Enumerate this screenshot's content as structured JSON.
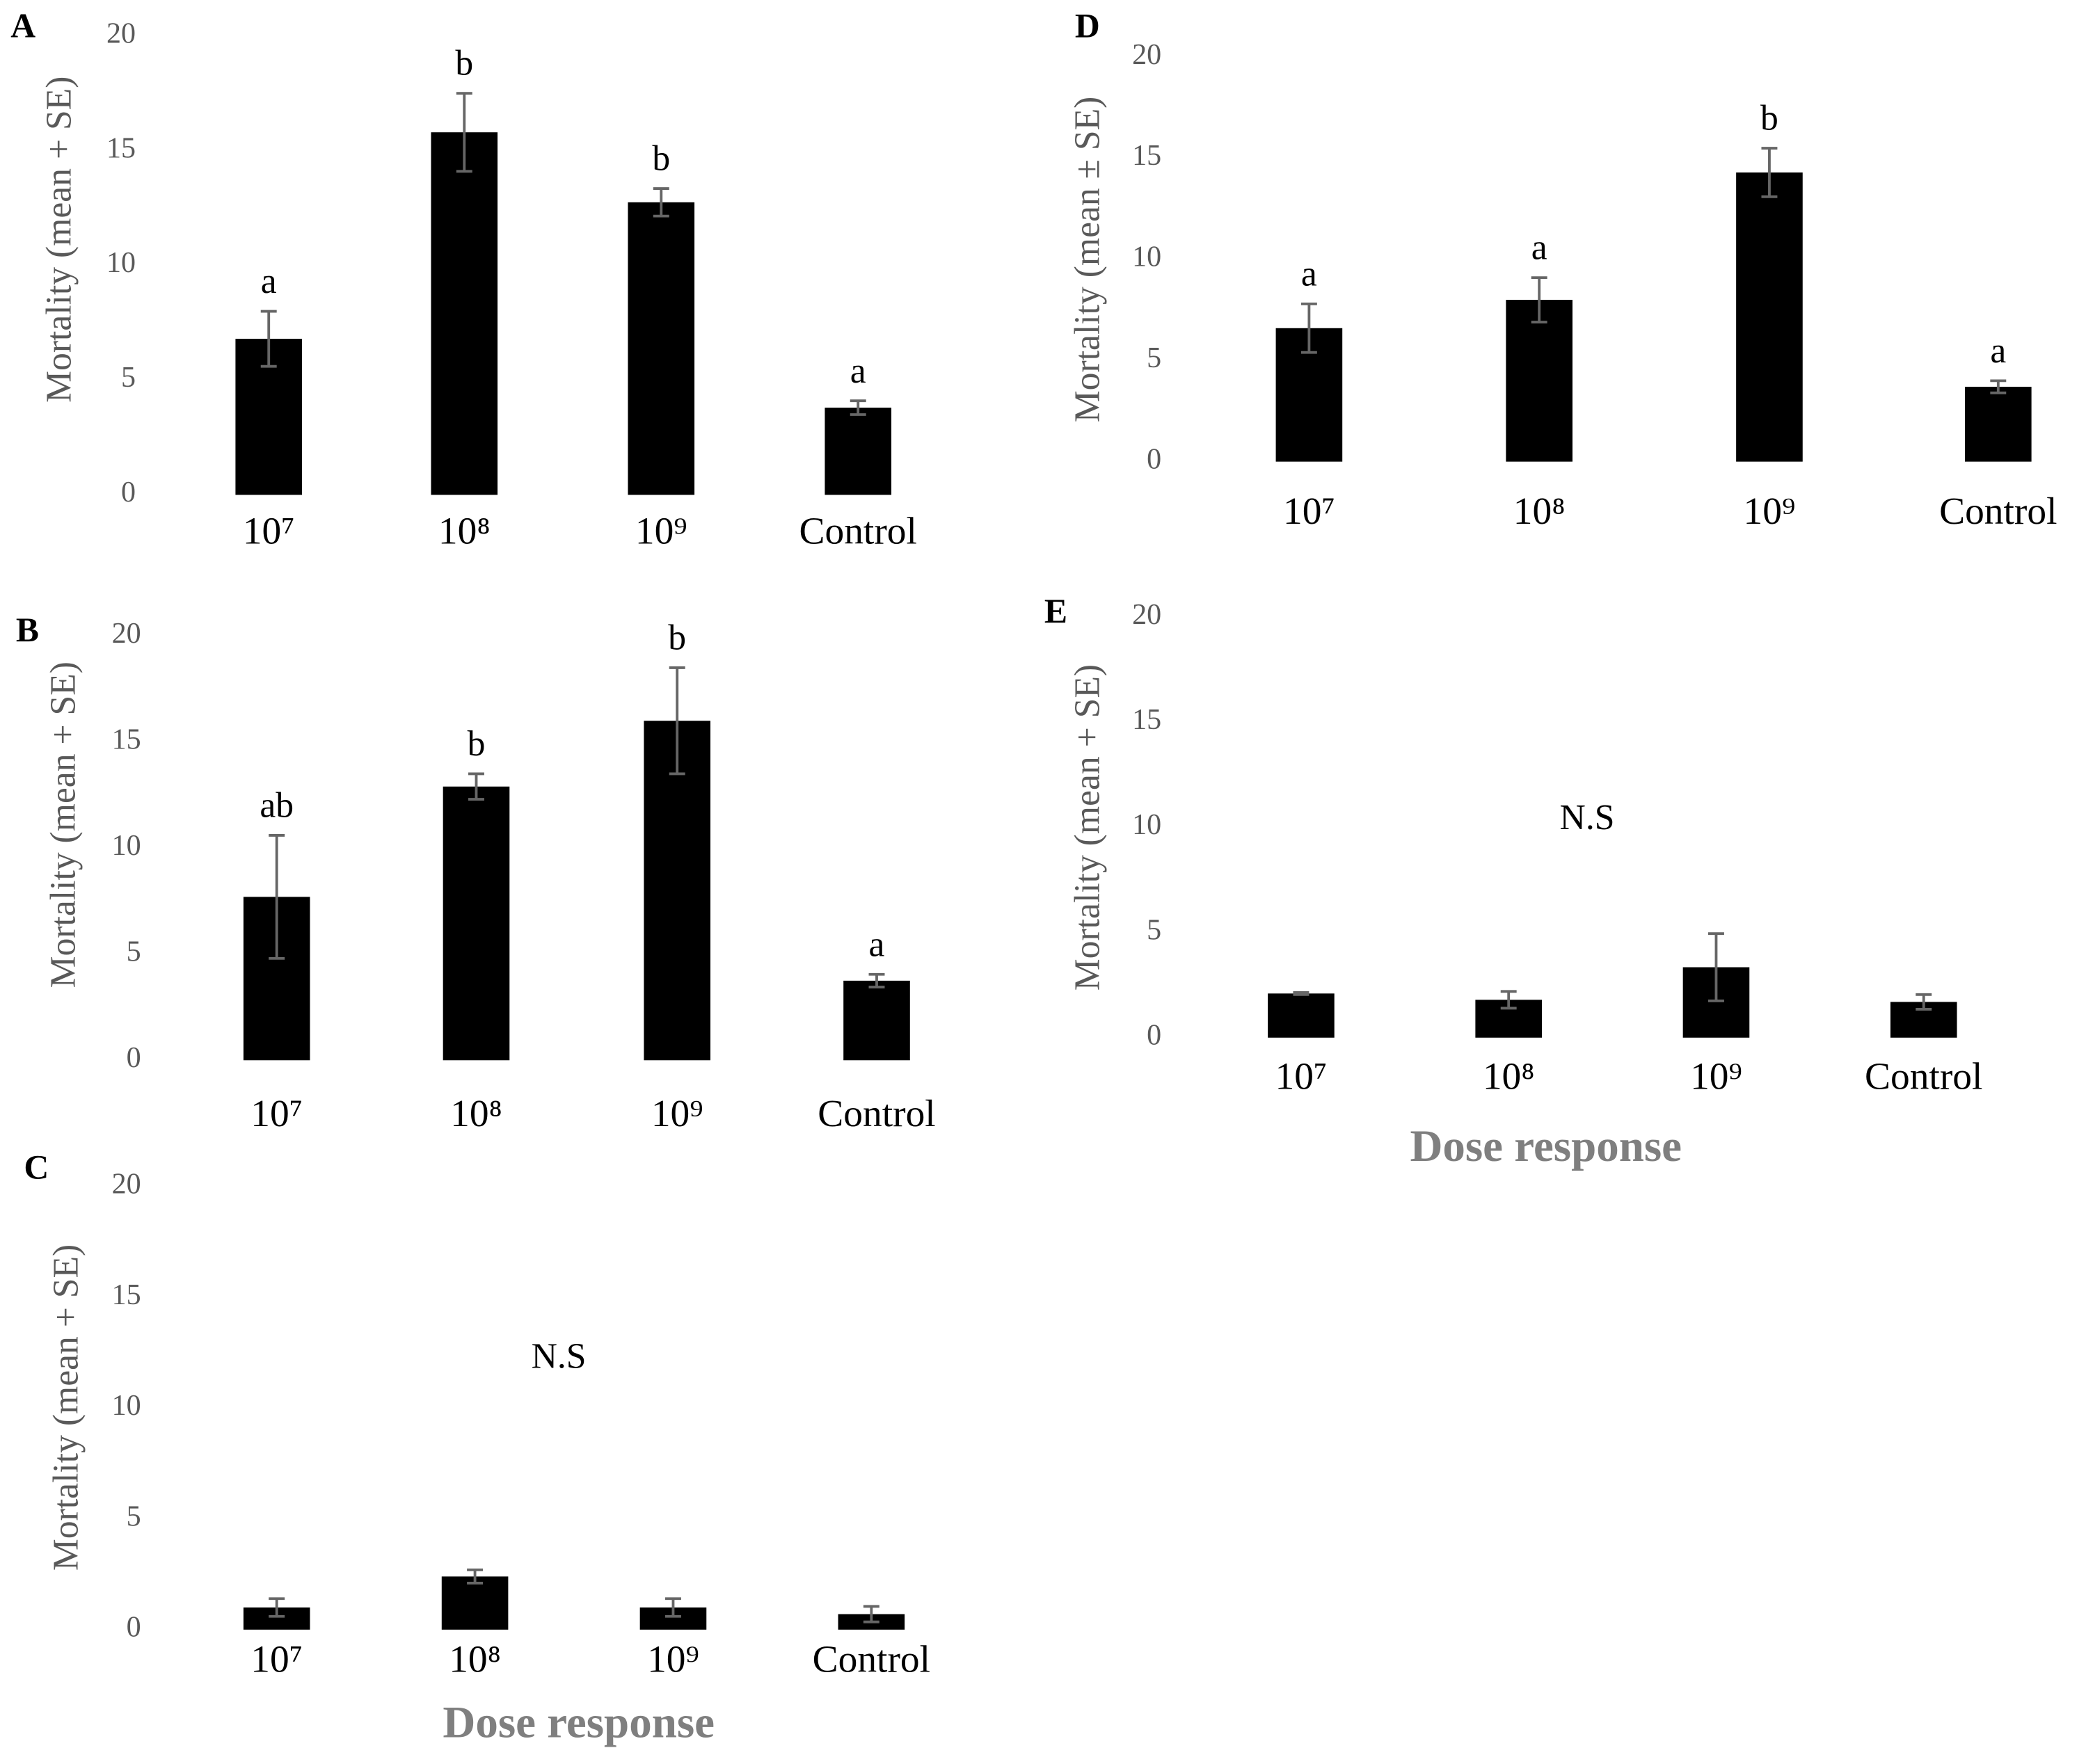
{
  "chart_data": [
    {
      "type": "bar",
      "panel": "A",
      "ylabel": "Mortality (mean + SE)",
      "categories": [
        "10⁷",
        "10⁸",
        "10⁹",
        "Control"
      ],
      "values": [
        6.8,
        15.8,
        12.75,
        3.8
      ],
      "errors": [
        1.2,
        1.7,
        0.6,
        0.3
      ],
      "bar_labels": [
        "a",
        "b",
        "b",
        "a"
      ],
      "ylim": [
        0,
        20
      ],
      "yticks": [
        0,
        5,
        10,
        15,
        20
      ],
      "color": "#000000"
    },
    {
      "type": "bar",
      "panel": "B",
      "ylabel": "Mortality (mean + SE)",
      "categories": [
        "10⁷",
        "10⁸",
        "10⁹",
        "Control"
      ],
      "values": [
        7.7,
        12.9,
        16,
        3.75
      ],
      "errors": [
        2.9,
        0.6,
        2.5,
        0.3
      ],
      "bar_labels": [
        "ab",
        "b",
        "b",
        "a"
      ],
      "ylim": [
        0,
        20
      ],
      "yticks": [
        0,
        5,
        10,
        15,
        20
      ],
      "color": "#000000"
    },
    {
      "type": "bar",
      "panel": "C",
      "ylabel": "Mortality (mean + SE)",
      "xlabel": "Dose response",
      "annotation": "N.S",
      "categories": [
        "10⁷",
        "10⁸",
        "10⁹",
        "Control"
      ],
      "values": [
        1.0,
        2.4,
        1.0,
        0.7
      ],
      "errors": [
        0.4,
        0.3,
        0.4,
        0.35
      ],
      "ylim": [
        0,
        20
      ],
      "yticks": [
        0,
        5,
        10,
        15,
        20
      ],
      "color": "#000000"
    },
    {
      "type": "bar",
      "panel": "D",
      "ylabel": "Mortality (mean ± SE)",
      "categories": [
        "10⁷",
        "10⁸",
        "10⁹",
        "Control"
      ],
      "values": [
        6.6,
        8.0,
        14.3,
        3.7
      ],
      "errors": [
        1.2,
        1.1,
        1.2,
        0.3
      ],
      "bar_labels": [
        "a",
        "a",
        "b",
        "a"
      ],
      "ylim": [
        0,
        20
      ],
      "yticks": [
        0,
        5,
        10,
        15,
        20
      ],
      "color": "#000000"
    },
    {
      "type": "bar",
      "panel": "E",
      "ylabel": "Mortality (mean + SE)",
      "xlabel": "Dose response",
      "annotation": "N.S",
      "categories": [
        "10⁷",
        "10⁸",
        "10⁹",
        "Control"
      ],
      "values": [
        2.1,
        1.8,
        3.35,
        1.7
      ],
      "errors": [
        0.05,
        0.4,
        1.6,
        0.35
      ],
      "ylim": [
        0,
        20
      ],
      "yticks": [
        0,
        5,
        10,
        15,
        20
      ],
      "color": "#000000"
    }
  ]
}
